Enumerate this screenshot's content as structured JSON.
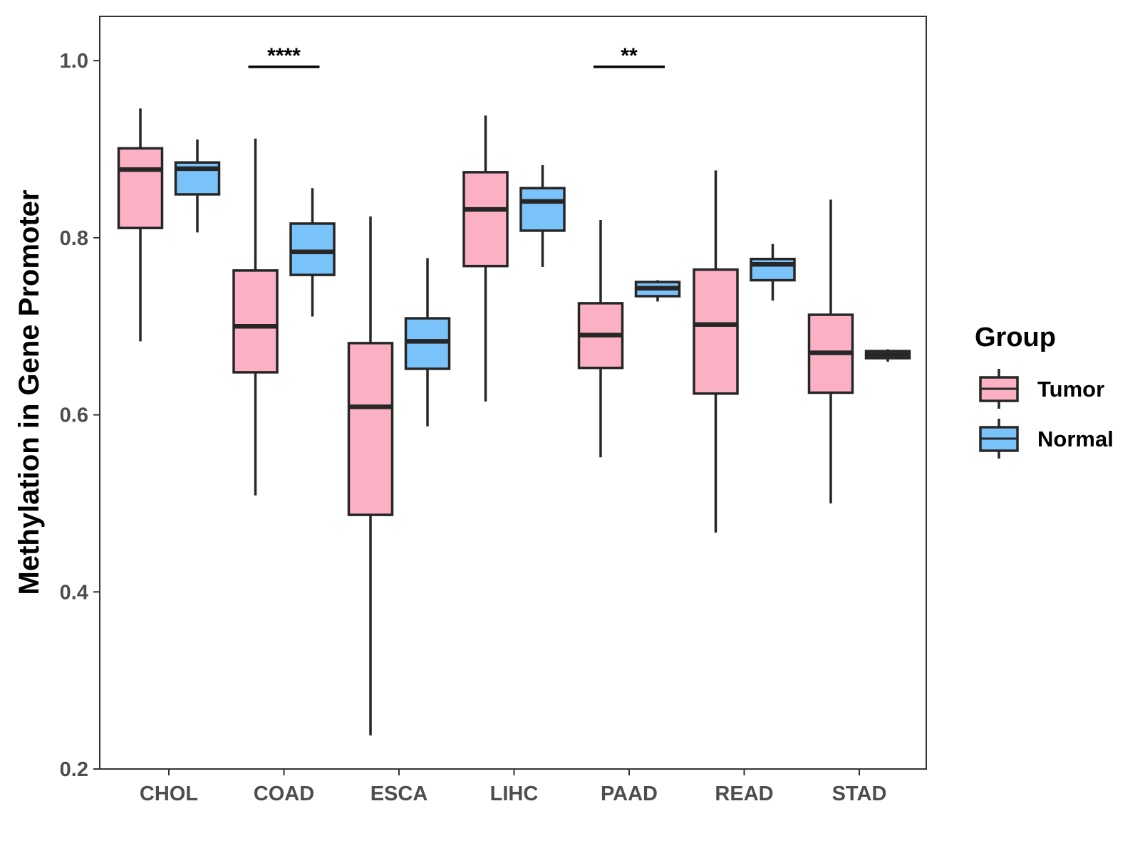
{
  "chart_data": {
    "type": "boxplot",
    "title": "",
    "xlabel": "",
    "ylabel": "Methylation in Gene Promoter",
    "ylim": [
      0.2,
      1.05
    ],
    "yticks": [
      0.2,
      0.4,
      0.6,
      0.8,
      1.0
    ],
    "ytick_labels": [
      "0.2",
      "0.4",
      "0.6",
      "0.8",
      "1.0"
    ],
    "grid": false,
    "legend": {
      "title": "Group",
      "position": "right",
      "entries": [
        {
          "name": "Tumor",
          "color": "#fbb1c3"
        },
        {
          "name": "Normal",
          "color": "#7ac2fa"
        }
      ]
    },
    "categories": [
      "CHOL",
      "COAD",
      "ESCA",
      "LIHC",
      "PAAD",
      "READ",
      "STAD"
    ],
    "series": [
      {
        "name": "Tumor",
        "color": "#fbb1c3",
        "boxes": [
          {
            "min": 0.683,
            "q1": 0.811,
            "median": 0.877,
            "q3": 0.901,
            "max": 0.946
          },
          {
            "min": 0.509,
            "q1": 0.648,
            "median": 0.7,
            "q3": 0.763,
            "max": 0.912
          },
          {
            "min": 0.238,
            "q1": 0.487,
            "median": 0.609,
            "q3": 0.681,
            "max": 0.824
          },
          {
            "min": 0.615,
            "q1": 0.768,
            "median": 0.832,
            "q3": 0.874,
            "max": 0.938
          },
          {
            "min": 0.552,
            "q1": 0.653,
            "median": 0.69,
            "q3": 0.726,
            "max": 0.82
          },
          {
            "min": 0.467,
            "q1": 0.624,
            "median": 0.702,
            "q3": 0.764,
            "max": 0.876
          },
          {
            "min": 0.5,
            "q1": 0.625,
            "median": 0.67,
            "q3": 0.713,
            "max": 0.843
          }
        ]
      },
      {
        "name": "Normal",
        "color": "#7ac2fa",
        "boxes": [
          {
            "min": 0.806,
            "q1": 0.849,
            "median": 0.878,
            "q3": 0.885,
            "max": 0.911
          },
          {
            "min": 0.711,
            "q1": 0.758,
            "median": 0.784,
            "q3": 0.816,
            "max": 0.856
          },
          {
            "min": 0.587,
            "q1": 0.652,
            "median": 0.683,
            "q3": 0.709,
            "max": 0.777
          },
          {
            "min": 0.767,
            "q1": 0.808,
            "median": 0.841,
            "q3": 0.856,
            "max": 0.882
          },
          {
            "min": 0.728,
            "q1": 0.734,
            "median": 0.743,
            "q3": 0.75,
            "max": 0.752
          },
          {
            "min": 0.729,
            "q1": 0.752,
            "median": 0.77,
            "q3": 0.776,
            "max": 0.793
          },
          {
            "min": 0.66,
            "q1": 0.664,
            "median": 0.668,
            "q3": 0.672,
            "max": 0.674
          }
        ]
      }
    ],
    "significance": [
      {
        "category": "COAD",
        "label": "****",
        "y": 0.993
      },
      {
        "category": "PAAD",
        "label": "**",
        "y": 0.993
      }
    ]
  }
}
